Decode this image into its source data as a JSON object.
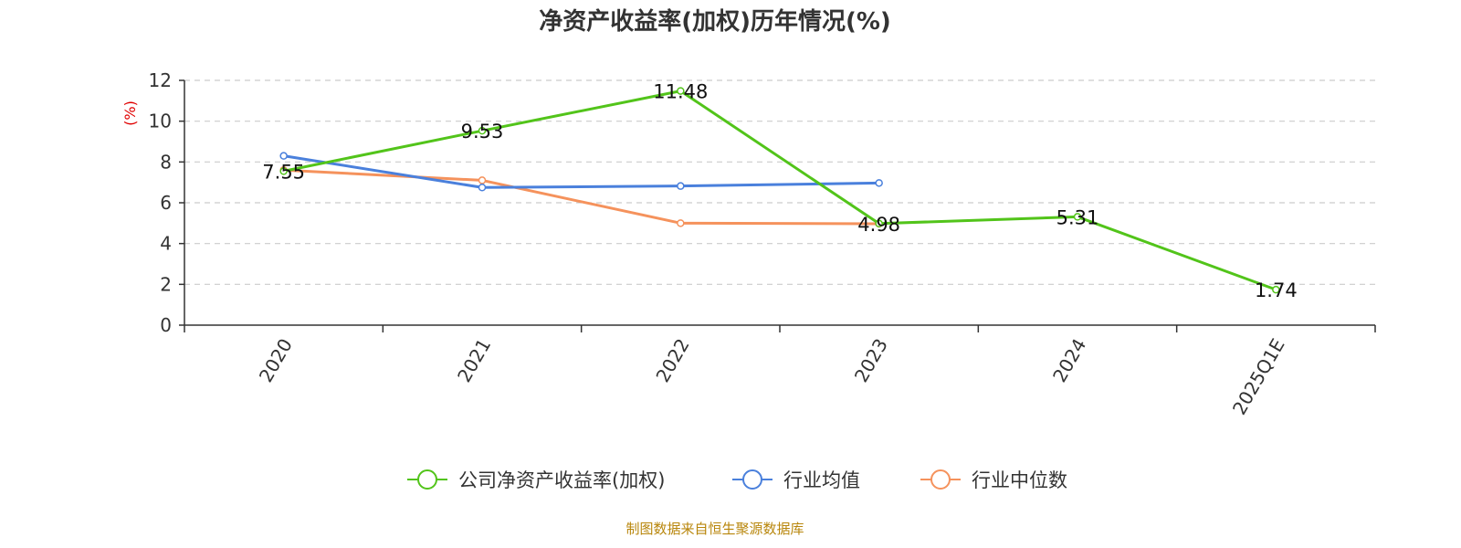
{
  "chart_data": {
    "type": "line",
    "title": "净资产收益率(加权)历年情况(%)",
    "ylabel": "(%)",
    "ylim": [
      0,
      12
    ],
    "yticks": [
      0,
      2,
      4,
      6,
      8,
      10,
      12
    ],
    "grid": true,
    "legend_position": "bottom",
    "categories": [
      "2020",
      "2021",
      "2022",
      "2023",
      "2024",
      "2025Q1E"
    ],
    "series": [
      {
        "name": "公司净资产收益率(加权)",
        "color": "#52c41a",
        "values": [
          7.55,
          9.53,
          11.48,
          4.98,
          5.31,
          1.74
        ],
        "show_labels": true
      },
      {
        "name": "行业均值",
        "color": "#4a80dc",
        "values": [
          8.3,
          6.75,
          6.82,
          6.97,
          null,
          null
        ],
        "show_labels": false
      },
      {
        "name": "行业中位数",
        "color": "#f5925c",
        "values": [
          7.6,
          7.1,
          5.0,
          4.97,
          null,
          null
        ],
        "show_labels": false
      }
    ],
    "labels": [
      "7.55",
      "9.53",
      "11.48",
      "4.98",
      "5.31",
      "1.74"
    ]
  },
  "source": "制图数据来自恒生聚源数据库"
}
